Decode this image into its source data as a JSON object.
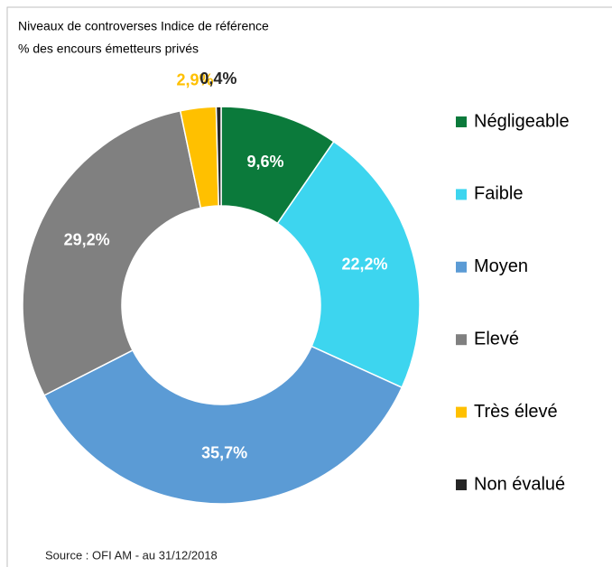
{
  "chart_data": {
    "type": "donut",
    "title": "Niveaux de controverses Indice de référence",
    "subtitle": "% des encours émetteurs privés",
    "source": "Source : OFI AM - au 31/12/2018",
    "categories": [
      "Négligeable",
      "Faible",
      "Moyen",
      "Elevé",
      "Très élevé",
      "Non évalué"
    ],
    "values": [
      9.6,
      22.2,
      35.7,
      29.2,
      2.9,
      0.4
    ],
    "value_labels": [
      "9,6%",
      "22,2%",
      "35,7%",
      "29,2%",
      "2,9%",
      "0,4%"
    ],
    "colors": [
      "#0b7a3b",
      "#3dd5ef",
      "#5b9bd5",
      "#808080",
      "#ffc000",
      "#262626"
    ],
    "legend": "right"
  }
}
